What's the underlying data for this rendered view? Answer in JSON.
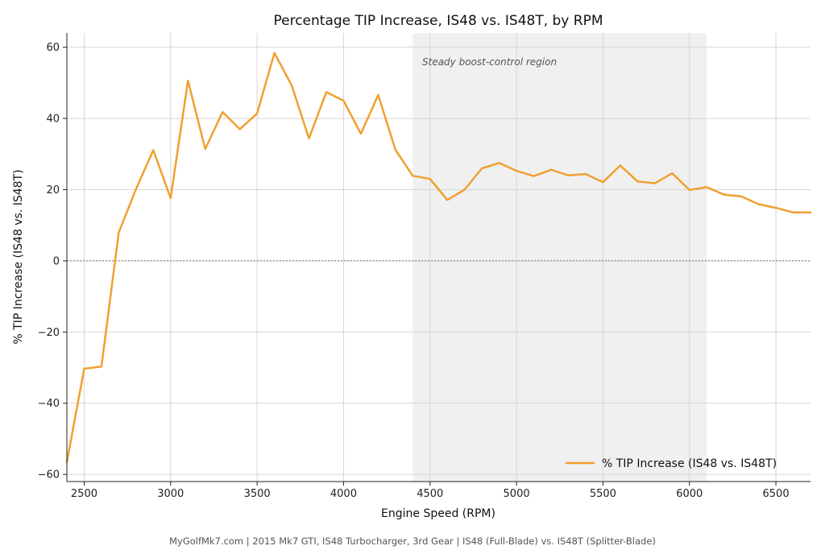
{
  "chart_data": {
    "type": "line",
    "title": "Percentage TIP Increase, IS48 vs. IS48T, by RPM",
    "xlabel": "Engine Speed (RPM)",
    "ylabel": "% TIP Increase (IS48 vs. IS48T)",
    "xlim": [
      2400,
      6700
    ],
    "ylim": [
      -62,
      64
    ],
    "x_ticks": [
      2500,
      3000,
      3500,
      4000,
      4500,
      5000,
      5500,
      6000,
      6500
    ],
    "y_ticks": [
      -60,
      -40,
      -20,
      0,
      20,
      40,
      60
    ],
    "grid": true,
    "reference_line": {
      "y": 0,
      "style": "dotted"
    },
    "shaded_region": {
      "x_start": 4400,
      "x_end": 6100,
      "label": "Steady boost-control region"
    },
    "legend_position": "bottom-right",
    "series": [
      {
        "name": "% TIP Increase (IS48 vs. IS48T)",
        "color": "#F0A030",
        "x": [
          2400,
          2500,
          2600,
          2700,
          2800,
          2900,
          3000,
          3100,
          3200,
          3300,
          3400,
          3500,
          3600,
          3700,
          3800,
          3900,
          4000,
          4100,
          4200,
          4300,
          4400,
          4500,
          4600,
          4700,
          4800,
          4900,
          5000,
          5100,
          5200,
          5300,
          5400,
          5500,
          5600,
          5700,
          5800,
          5900,
          6000,
          6100,
          6200,
          6300,
          6400,
          6500,
          6600,
          6700
        ],
        "y": [
          -56.5,
          -30.3,
          -29.7,
          8.0,
          20.2,
          31.1,
          17.6,
          50.6,
          31.4,
          41.8,
          37.0,
          41.4,
          58.4,
          49.3,
          34.4,
          47.4,
          45.0,
          35.7,
          46.6,
          31.2,
          23.9,
          23.0,
          17.1,
          20.0,
          26.0,
          27.5,
          25.3,
          23.8,
          25.6,
          24.0,
          24.4,
          22.1,
          26.8,
          22.3,
          21.8,
          24.6,
          19.9,
          20.7,
          18.6,
          18.1,
          15.9,
          14.9,
          13.6,
          13.6
        ]
      }
    ]
  },
  "caption": "MyGolfMk7.com | 2015 Mk7 GTI, IS48 Turbocharger, 3rd Gear | IS48 (Full-Blade) vs. IS48T (Splitter-Blade)"
}
